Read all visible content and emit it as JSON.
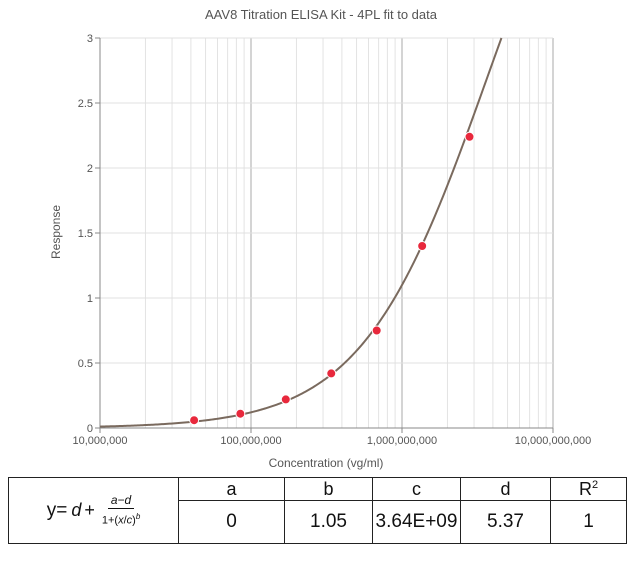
{
  "chart_data": {
    "type": "scatter",
    "title": "AAV8 Titration ELISA Kit - 4PL fit to data",
    "xlabel": "Concentration (vg/ml)",
    "ylabel": "Response",
    "x_scale": "log",
    "xlim": [
      10000000,
      10000000000
    ],
    "ylim": [
      0,
      3
    ],
    "x_ticks": [
      10000000,
      100000000,
      1000000000,
      10000000000
    ],
    "x_tick_labels": [
      "10,000,000",
      "100,000,000",
      "1,000,000,000",
      "10,000,000,000"
    ],
    "y_ticks": [
      0,
      0.5,
      1,
      1.5,
      2,
      2.5,
      3
    ],
    "y_tick_labels": [
      "0",
      "0.5",
      "1",
      "1.5",
      "2",
      "2.5",
      "3"
    ],
    "grid": true,
    "series": [
      {
        "kind": "points",
        "color": "#e8283c",
        "x": [
          42000000,
          85000000,
          170000000,
          340000000,
          680000000,
          1360000000,
          2800000000
        ],
        "y": [
          0.06,
          0.11,
          0.22,
          0.42,
          0.75,
          1.4,
          2.24
        ]
      },
      {
        "kind": "fit",
        "model": "4PL",
        "color": "#7a6a5e",
        "params": {
          "a": 0,
          "b": 1.05,
          "c": 3640000000,
          "d": 5.37
        }
      }
    ]
  },
  "fit_table": {
    "headers": [
      "a",
      "b",
      "c",
      "d",
      "R2"
    ],
    "values": [
      "0",
      "1.05",
      "3.64E+09",
      "5.37",
      "1"
    ],
    "equation": {
      "lead": "y=",
      "d": "d",
      "plus": "+",
      "numerator": "a−d",
      "den_open": "1+(",
      "x": "x",
      "c": "c",
      "den_close": ")",
      "exp": "b"
    }
  }
}
